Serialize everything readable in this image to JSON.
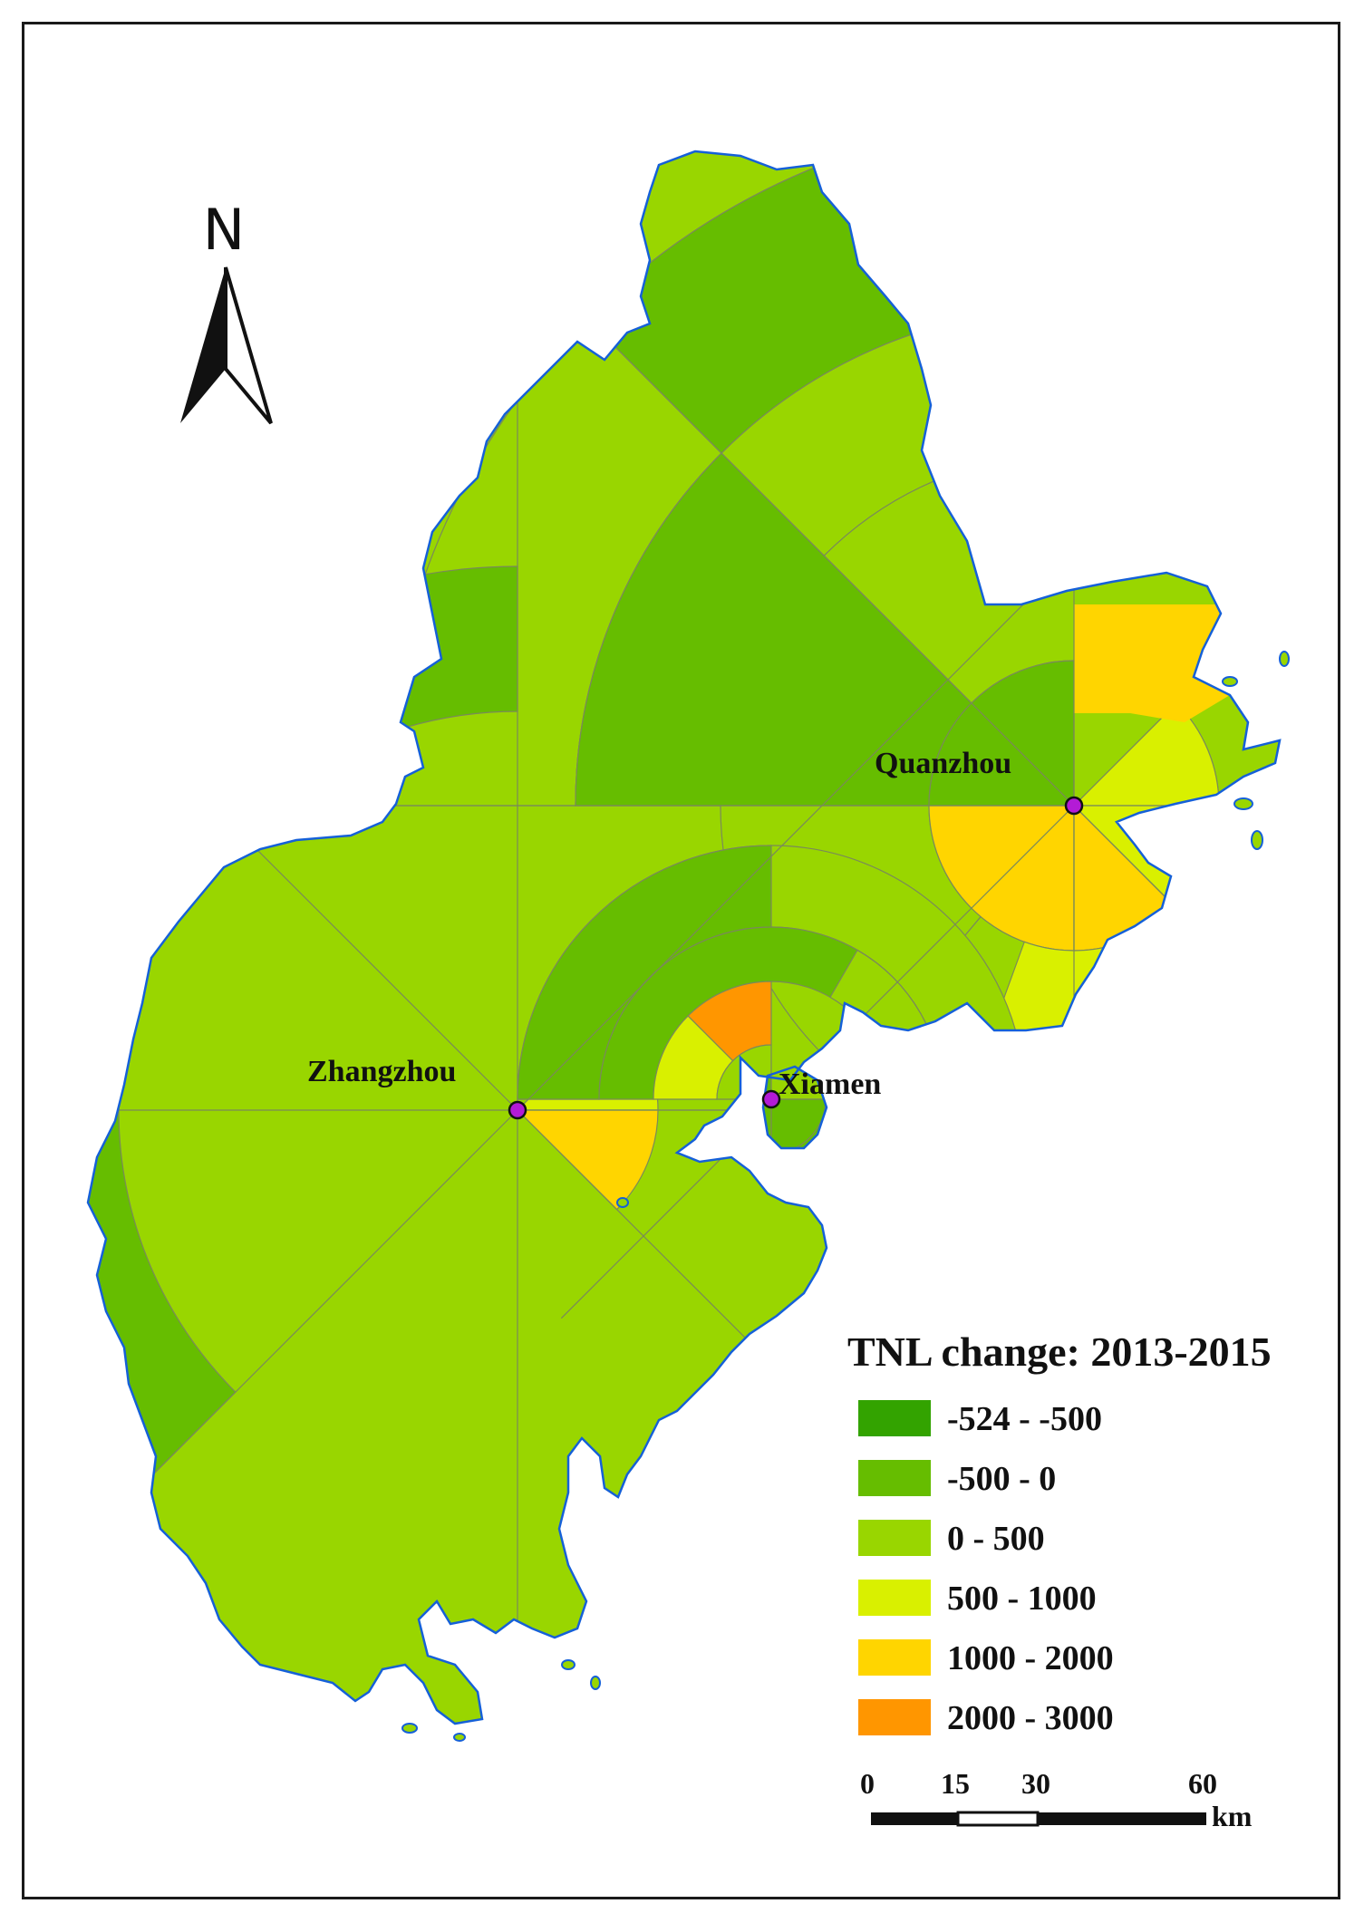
{
  "north_arrow": {
    "label": "N"
  },
  "cities": [
    {
      "id": "quanzhou",
      "name": "Quanzhou",
      "dot_color": "#b31bd6"
    },
    {
      "id": "zhangzhou",
      "name": "Zhangzhou",
      "dot_color": "#b31bd6"
    },
    {
      "id": "xiamen",
      "name": "Xiamen",
      "dot_color": "#b31bd6"
    }
  ],
  "legend": {
    "title": "TNL change: 2013-2015",
    "classes": [
      {
        "label": "-524 - -500",
        "color": "#33a300"
      },
      {
        "label": "-500 - 0",
        "color": "#66bd00"
      },
      {
        "label": "0 - 500",
        "color": "#99d600"
      },
      {
        "label": "500 - 1000",
        "color": "#d9f000"
      },
      {
        "label": "1000 - 2000",
        "color": "#ffd500"
      },
      {
        "label": "2000 - 3000",
        "color": "#ff9600"
      }
    ]
  },
  "scale_bar": {
    "ticks": [
      "0",
      "15",
      "30",
      "60"
    ],
    "unit": "km"
  },
  "colors": {
    "coastline": "#1560d8",
    "sector_lines": "#7a8a5a"
  }
}
